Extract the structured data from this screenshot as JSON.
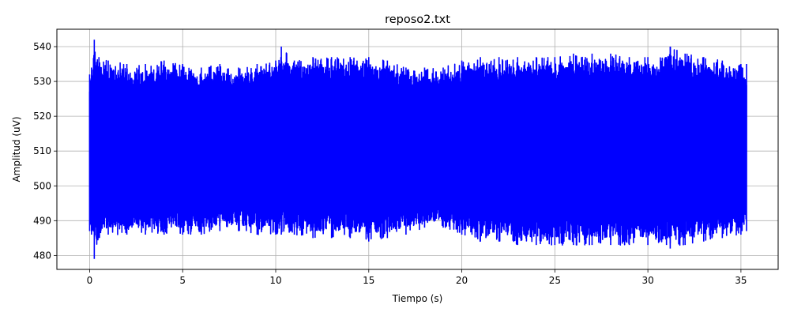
{
  "chart_data": {
    "type": "line",
    "title": "reposo2.txt",
    "xlabel": "Tiempo (s)",
    "ylabel": "Amplitud (uV)",
    "xlim": [
      -1.76,
      37.0
    ],
    "ylim": [
      476,
      545
    ],
    "x_ticks": [
      0,
      5,
      10,
      15,
      20,
      25,
      30,
      35
    ],
    "y_ticks": [
      480,
      490,
      500,
      510,
      520,
      530,
      540
    ],
    "grid": true,
    "legend": "none",
    "series": [
      {
        "color": "#0000ff",
        "x_range": [
          0,
          35.3
        ],
        "envelope": {
          "x": [
            0,
            0.1,
            0.25,
            0.5,
            1,
            2,
            3,
            4,
            5,
            6,
            7,
            8,
            9,
            10,
            10.3,
            11,
            12,
            13,
            14,
            15,
            16,
            17,
            18,
            19,
            20,
            21,
            22,
            23,
            24,
            25,
            26,
            27,
            28,
            29,
            30,
            31,
            31.2,
            32,
            33,
            34,
            35,
            35.3
          ],
          "upper": [
            532,
            534,
            542,
            537,
            536,
            535,
            535,
            536,
            535,
            534,
            535,
            534,
            535,
            536,
            540,
            536,
            537,
            537,
            537,
            537,
            536,
            534,
            534,
            534,
            536,
            537,
            537,
            537,
            537,
            537,
            538,
            538,
            538,
            537,
            537,
            537,
            540,
            538,
            537,
            536,
            535,
            535
          ],
          "lower": [
            487,
            486,
            479,
            485,
            486,
            486,
            486,
            486,
            486,
            486,
            487,
            487,
            486,
            486,
            486,
            486,
            485,
            485,
            485,
            484,
            485,
            486,
            488,
            488,
            486,
            484,
            484,
            483,
            483,
            483,
            483,
            483,
            483,
            483,
            483,
            483,
            482,
            483,
            484,
            485,
            486,
            487
          ]
        }
      }
    ]
  }
}
